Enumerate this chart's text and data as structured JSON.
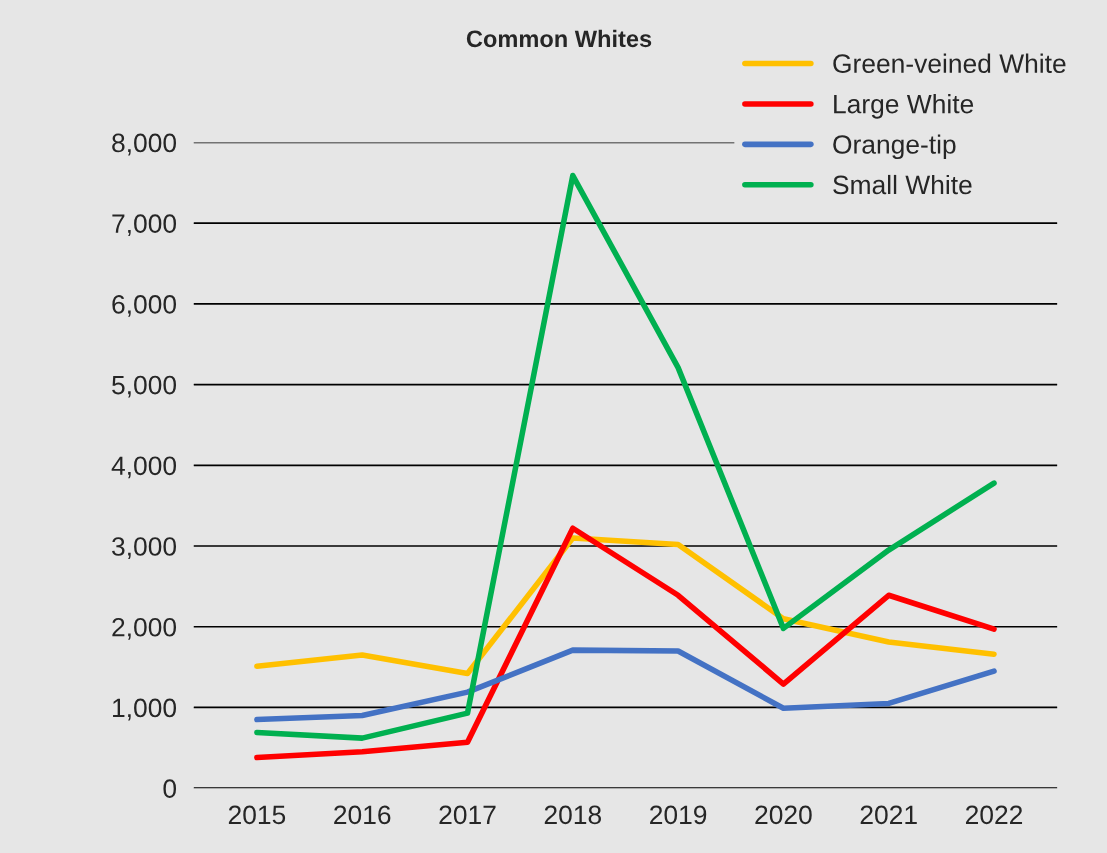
{
  "chart_data": {
    "type": "line",
    "title": "Common Whites",
    "categories": [
      "2015",
      "2016",
      "2017",
      "2018",
      "2019",
      "2020",
      "2021",
      "2022"
    ],
    "series": [
      {
        "name": "Green-veined White",
        "color": "#ffc000",
        "values": [
          1510,
          1650,
          1420,
          3100,
          3020,
          2100,
          1810,
          1660
        ]
      },
      {
        "name": "Large White",
        "color": "#ff0000",
        "values": [
          380,
          450,
          570,
          3220,
          2390,
          1290,
          2390,
          1970
        ]
      },
      {
        "name": "Orange-tip",
        "color": "#4472c4",
        "values": [
          850,
          900,
          1190,
          1710,
          1700,
          990,
          1050,
          1450
        ]
      },
      {
        "name": "Small White",
        "color": "#00b050",
        "values": [
          690,
          620,
          930,
          7590,
          5210,
          1980,
          2950,
          3780
        ]
      }
    ],
    "ylim": [
      0,
      8000
    ],
    "yticks": [
      {
        "value": 0,
        "label": "0"
      },
      {
        "value": 1000,
        "label": "1,000"
      },
      {
        "value": 2000,
        "label": "2,000"
      },
      {
        "value": 3000,
        "label": "3,000"
      },
      {
        "value": 4000,
        "label": "4,000"
      },
      {
        "value": 5000,
        "label": "5,000"
      },
      {
        "value": 6000,
        "label": "6,000"
      },
      {
        "value": 7000,
        "label": "7,000"
      },
      {
        "value": 8000,
        "label": "8,000"
      }
    ],
    "grid": "y",
    "legend": "top right",
    "marker": "none",
    "line_style": "solid"
  }
}
